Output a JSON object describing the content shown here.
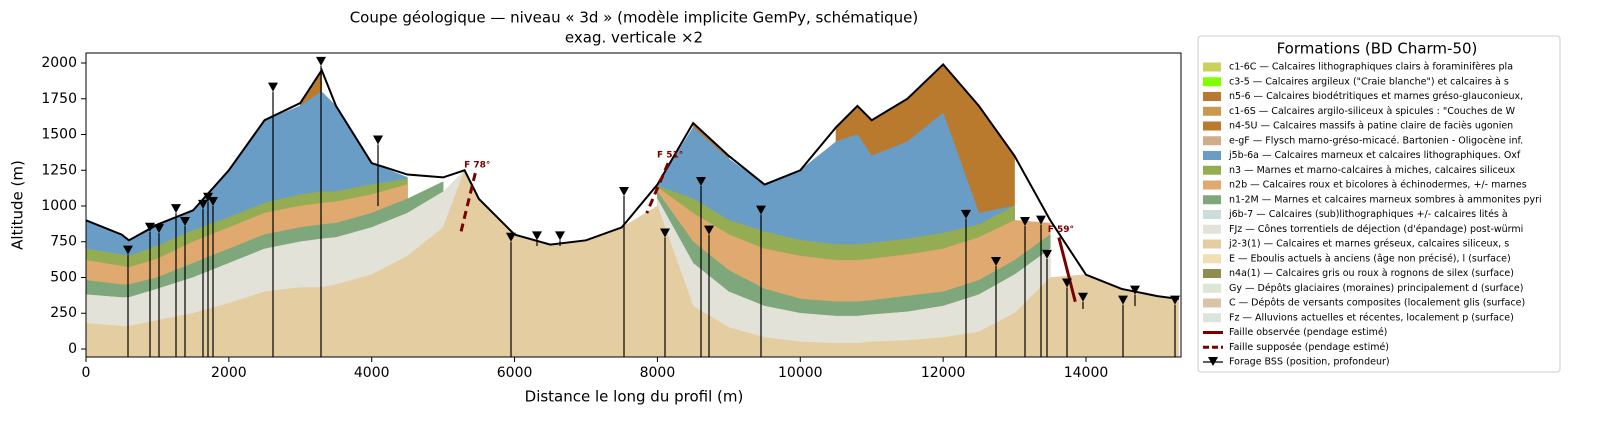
{
  "chart_data": {
    "type": "section",
    "title": "Coupe géologique — niveau « 3d » (modèle implicite GemPy, schématique)",
    "subtitle": "exag. verticale ×2",
    "xlabel": "Distance le long du profil (m)",
    "ylabel": "Altitude (m)",
    "legend_title": "Formations (BD Charm-50)",
    "xlim": [
      0,
      15330
    ],
    "ylim": [
      -56,
      2070
    ],
    "xticks": [
      0,
      2000,
      4000,
      6000,
      8000,
      10000,
      12000,
      14000
    ],
    "yticks": [
      0,
      250,
      500,
      750,
      1000,
      1250,
      1500,
      1750,
      2000
    ],
    "x": [
      0,
      500,
      600,
      1000,
      1500,
      2000,
      2500,
      3000,
      3300,
      3500,
      4000,
      4500,
      5000,
      5300,
      5500,
      6000,
      6500,
      7000,
      7500,
      8000,
      8500,
      9000,
      9500,
      10000,
      10500,
      10800,
      11000,
      11500,
      12000,
      12500,
      13000,
      13500,
      14000,
      14500,
      15000,
      15300
    ],
    "topography": [
      900,
      800,
      760,
      870,
      970,
      1250,
      1600,
      1720,
      1950,
      1700,
      1300,
      1220,
      1200,
      1250,
      1050,
      800,
      730,
      760,
      850,
      1150,
      1580,
      1350,
      1150,
      1250,
      1550,
      1700,
      1600,
      1750,
      1990,
      1700,
      1350,
      900,
      520,
      420,
      370,
      350
    ],
    "series": [
      {
        "name": "c1-6C — Calcaires lithographiques clairs à foraminifères pla",
        "color": "#c8d25a",
        "values": [
          null,
          null,
          null,
          null,
          null,
          null,
          null,
          null,
          null,
          null,
          null,
          null,
          null,
          null,
          null,
          null,
          null,
          null,
          null,
          null,
          null,
          null,
          null,
          null,
          1570,
          1720,
          1620,
          null,
          2000,
          1720,
          null,
          null,
          null,
          null,
          null,
          null
        ]
      },
      {
        "name": "c3-5 — Calcaires argileux (\"Craie blanche\") et calcaires à s",
        "color": "#80ff00"
      },
      {
        "name": "n5-6 — Calcaires biodétritiques et marnes gréso-glauconieux,",
        "color": "#b87a30"
      },
      {
        "name": "c1-6S — Calcaires argilo-siliceux à spicules : \"Couches de W",
        "color": "#c99a4e"
      },
      {
        "name": "n4-5U — Calcaires massifs à patine claire de faciès ugonien",
        "color": "#ba7a2e",
        "values": [
          null,
          null,
          null,
          null,
          null,
          null,
          null,
          1720,
          1950,
          null,
          null,
          null,
          null,
          null,
          null,
          null,
          null,
          null,
          null,
          null,
          1600,
          1360,
          null,
          null,
          1560,
          1710,
          1610,
          1760,
          2000,
          1710,
          1360,
          null,
          null,
          null,
          null,
          null
        ]
      },
      {
        "name": "e-gF — Flysch marno-gréso-micacé. Bartonien - Oligocène inf.",
        "color": "#d1ad8a"
      },
      {
        "name": "j5b-6a — Calcaires marneux et calcaires lithographiques. Oxf",
        "color": "#6a9dc6",
        "values": [
          900,
          800,
          760,
          870,
          970,
          1250,
          1600,
          1700,
          1800,
          1700,
          1300,
          1200,
          null,
          null,
          null,
          null,
          null,
          null,
          null,
          1150,
          1550,
          1330,
          1150,
          1250,
          1450,
          1500,
          1350,
          1450,
          1650,
          950,
          1000,
          null,
          null,
          null,
          null,
          null
        ]
      },
      {
        "name": "n3 — Marnes et marno-calcaires à miches, calcaires siliceux",
        "color": "#95ad52",
        "values": [
          700,
          660,
          650,
          720,
          830,
          920,
          1020,
          1080,
          1100,
          1100,
          1150,
          1190,
          null,
          null,
          null,
          null,
          null,
          null,
          null,
          1140,
          1050,
          900,
          820,
          760,
          730,
          730,
          740,
          770,
          810,
          870,
          1000,
          null,
          null,
          null,
          null,
          null
        ]
      },
      {
        "name": "n2b — Calcaires roux et bicolores à échinodermes, +/- marnes",
        "color": "#dfa96f",
        "values": [
          620,
          580,
          570,
          630,
          750,
          850,
          950,
          1000,
          1020,
          1030,
          1080,
          1150,
          null,
          null,
          null,
          null,
          null,
          null,
          null,
          1130,
          950,
          800,
          700,
          650,
          620,
          620,
          630,
          660,
          700,
          780,
          900,
          880,
          null,
          null,
          null,
          null
        ]
      },
      {
        "name": "n1-2M — Marnes et calcaires marneux sombres à ammonites pyri",
        "color": "#7ea87b",
        "values": [
          480,
          450,
          450,
          500,
          600,
          700,
          800,
          850,
          870,
          880,
          950,
          1050,
          1170,
          null,
          null,
          null,
          null,
          null,
          null,
          1100,
          750,
          550,
          420,
          350,
          330,
          330,
          340,
          370,
          400,
          480,
          620,
          800,
          null,
          null,
          null,
          null
        ]
      },
      {
        "name": "j6b-7 — Calcaires (sub)lithographiques +/- calcaires lités à",
        "color": "#cddcdc"
      },
      {
        "name": "FJz — Cônes torrentiels de déjection (d'épandage) post-würmi",
        "color": "#e3e2d8",
        "values": [
          380,
          360,
          360,
          420,
          500,
          600,
          700,
          750,
          770,
          780,
          850,
          950,
          1100,
          1250,
          null,
          null,
          null,
          null,
          null,
          1050,
          600,
          400,
          300,
          250,
          230,
          230,
          240,
          260,
          300,
          380,
          520,
          700,
          null,
          null,
          null,
          null
        ]
      },
      {
        "name": "j2-3(1) — Calcaires et marnes gréseux, calcaires siliceux, s",
        "color": "#e5cda2",
        "values": [
          180,
          160,
          160,
          200,
          250,
          320,
          400,
          430,
          430,
          450,
          520,
          650,
          850,
          1250,
          1050,
          800,
          730,
          760,
          850,
          1000,
          300,
          150,
          80,
          50,
          40,
          40,
          50,
          60,
          80,
          120,
          250,
          500,
          520,
          420,
          370,
          350
        ]
      },
      {
        "name": "E — Eboulis actuels à anciens (âge non précisé), l (surface)",
        "color": "#f1dfb3"
      },
      {
        "name": "n4a(1) — Calcaires gris ou roux à rognons de silex (surface)",
        "color": "#8e8c4e"
      },
      {
        "name": "Gy — Dépôts glaciaires (moraines) principalement d (surface)",
        "color": "#dfe6d6"
      },
      {
        "name": "C — Dépôts de versants composites (localement glis (surface)",
        "color": "#d9c4a8"
      },
      {
        "name": "Fz — Alluvions actuelles et récentes, localement p (surface)",
        "color": "#dce5dc"
      }
    ],
    "fault_legend": [
      {
        "name": "Faille observée (pendage estimé)",
        "color": "#7a0000",
        "dashed": false
      },
      {
        "name": "Faille supposée (pendage estimé)",
        "color": "#7a0000",
        "dashed": true
      }
    ],
    "faults": [
      {
        "label": "F 78°",
        "color": "#7a0000",
        "dashed": true,
        "x": [
          5450,
          5250
        ],
        "y": [
          1230,
          820
        ]
      },
      {
        "label": "F 51°",
        "color": "#7a0000",
        "dashed": true,
        "x": [
          8150,
          7850
        ],
        "y": [
          1300,
          950
        ]
      },
      {
        "label": "F 59°",
        "color": "#7a0000",
        "dashed": false,
        "x": [
          13620,
          13850
        ],
        "y": [
          780,
          330
        ]
      }
    ],
    "boreholes": {
      "name": "Forage BSS (position, profondeur)",
      "color": "#000000",
      "x": [
        588,
        896,
        1022,
        1260,
        1386,
        1638,
        1708,
        1778,
        2618,
        3290,
        4088,
        5950,
        6314,
        6636,
        7532,
        8106,
        8610,
        8722,
        9450,
        12320,
        12740,
        13146,
        13370,
        13454,
        13734,
        13958,
        14518,
        14686,
        15246
      ],
      "top": [
        660,
        820,
        810,
        950,
        860,
        980,
        1030,
        1000,
        1800,
        1980,
        1430,
        750,
        760,
        760,
        1070,
        780,
        1140,
        800,
        940,
        910,
        580,
        860,
        870,
        630,
        430,
        330,
        310,
        380,
        310
      ],
      "bottom": [
        -56,
        -56,
        -56,
        -56,
        -56,
        -56,
        -56,
        -56,
        -56,
        -56,
        1000,
        -56,
        720,
        720,
        -56,
        -56,
        -56,
        -56,
        -56,
        -56,
        -56,
        -56,
        -56,
        -56,
        -56,
        280,
        -56,
        300,
        -56
      ]
    }
  }
}
